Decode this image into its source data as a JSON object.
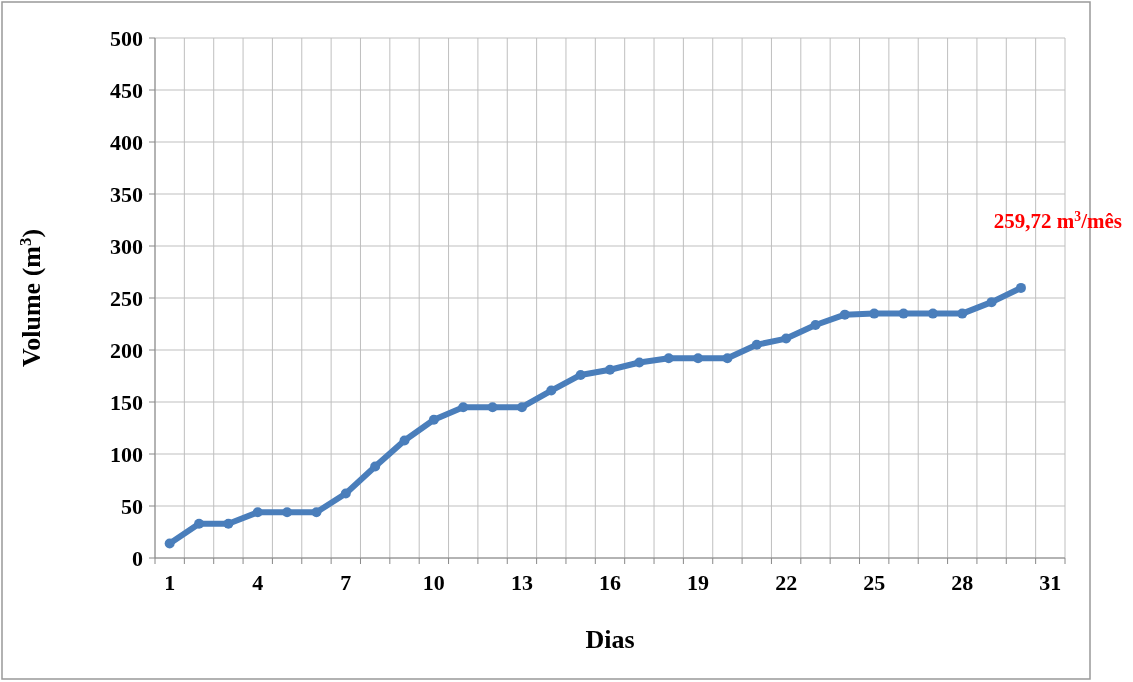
{
  "chart_data": {
    "type": "line",
    "xlabel": "Dias",
    "ylabel": "Volume  (m$^{3}$)",
    "categories": [
      "1",
      null,
      null,
      "4",
      null,
      null,
      "7",
      null,
      null,
      "10",
      null,
      null,
      "13",
      null,
      null,
      "16",
      null,
      null,
      "19",
      null,
      null,
      "22",
      null,
      null,
      "25",
      null,
      null,
      "28",
      null,
      null,
      "31"
    ],
    "series": [
      {
        "color": "#4a7ebb",
        "values": [
          14,
          33,
          33,
          44,
          44,
          44,
          62,
          88,
          113,
          133,
          145,
          145,
          145,
          161,
          176,
          181,
          188,
          192,
          192,
          192,
          205,
          211,
          224,
          234,
          235,
          235,
          235,
          235,
          246,
          259.72,
          null
        ]
      }
    ],
    "ylim": [
      0,
      500
    ],
    "yticks": [
      0,
      50,
      100,
      150,
      200,
      250,
      300,
      350,
      400,
      450,
      500
    ],
    "grid": true,
    "marker": "circle",
    "annotations": [
      "259,72 m$^{3}$/mês"
    ]
  }
}
